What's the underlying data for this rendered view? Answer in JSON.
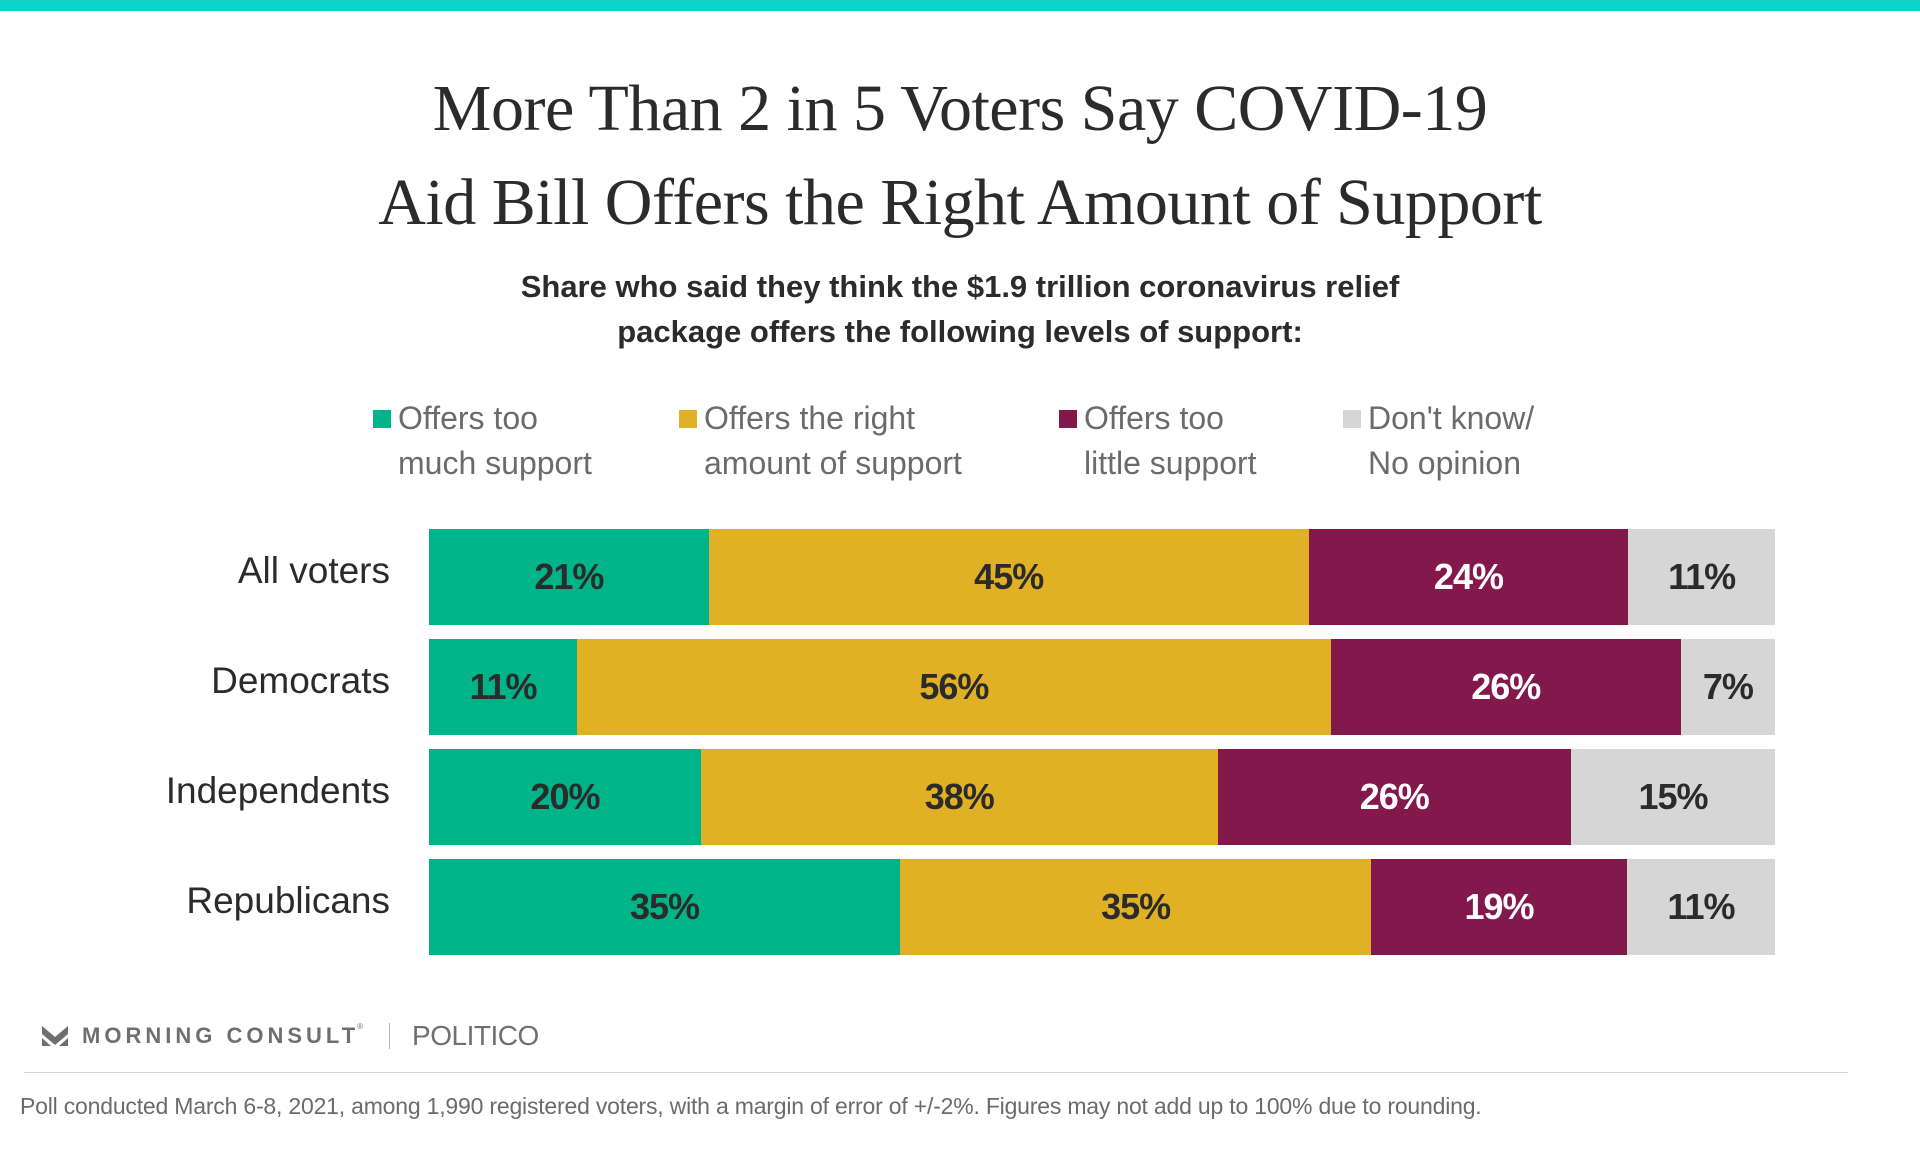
{
  "chart_data": {
    "type": "bar",
    "orientation": "horizontal",
    "stacked": true,
    "title": "More Than 2 in 5 Voters Say COVID-19 Aid Bill Offers the Right Amount of Support",
    "title_lines": [
      "More Than 2 in 5 Voters Say COVID-19",
      "Aid Bill Offers the Right Amount of Support"
    ],
    "subtitle": "Share who said they think the $1.9 trillion coronavirus relief package offers the following levels of support:",
    "subtitle_lines": [
      "Share who said they think the $1.9 trillion coronavirus relief",
      "package offers the following levels of support:"
    ],
    "xlabel": "",
    "ylabel": "",
    "grid": false,
    "legend_position": "top",
    "categories": [
      "All voters",
      "Democrats",
      "Independents",
      "Republicans"
    ],
    "series": [
      {
        "name": "Offers too much support",
        "legend_text": "Offers too\nmuch support",
        "color": "#00b48a",
        "label_color": "#2b2b2b",
        "values": [
          21,
          11,
          20,
          35
        ]
      },
      {
        "name": "Offers the right amount of support",
        "legend_text": "Offers the right\namount of support",
        "color": "#e1b125",
        "label_color": "#2b2b2b",
        "values": [
          45,
          56,
          38,
          35
        ]
      },
      {
        "name": "Offers too little support",
        "legend_text": "Offers too\nlittle support",
        "color": "#83184c",
        "label_color": "#ffffff",
        "values": [
          24,
          26,
          26,
          19
        ]
      },
      {
        "name": "Don't know/No opinion",
        "legend_text": "Don't know/\nNo opinion",
        "color": "#d6d6d6",
        "label_color": "#2b2b2b",
        "values": [
          11,
          7,
          15,
          11
        ]
      }
    ],
    "value_suffix": "%"
  },
  "branding": {
    "morning_consult": "MORNING CONSULT",
    "registered_mark": "®",
    "politico": "POLITICO",
    "accent_color": "#0fd3c9"
  },
  "footnote": "Poll conducted March 6-8, 2021, among 1,990 registered voters, with a margin of error of +/-2%. Figures may not add up to 100% due to rounding."
}
